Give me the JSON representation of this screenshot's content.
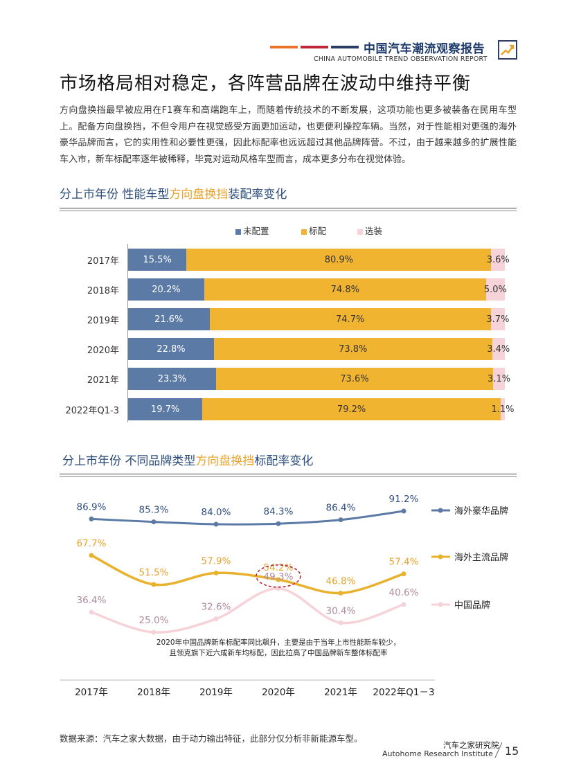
{
  "header": {
    "report_title": "中国汽车潮流观察报告",
    "report_subtitle": "CHINA AUTOMOBILE TREND OBSERVATION REPORT",
    "bar_colors": [
      "#e8732b",
      "#c0283a",
      "#2a3e66"
    ]
  },
  "main_title": "市场格局相对稳定，各阵营品牌在波动中维持平衡",
  "intro": "方向盘换挡最早被应用在F1赛车和高端跑车上，而随着传统技术的不断发展，这项功能也更多被装备在民用车型上。配备方向盘换挡，不但令用户在视觉感受方面更加运动，也更便利操控车辆。当然，对于性能相对更强的海外豪华品牌而言，它的实用性和必要性更强，因此标配率也远远超过其他品牌阵营。不过，由于越来越多的扩展性能车入市，新车标配率逐年被稀释，毕竟对运动风格车型而言，成本更多分布在视觉体验。",
  "section1": {
    "prefix": "分上市年份  性能车型",
    "highlight": "方向盘换挡",
    "suffix": "装配率变化"
  },
  "section2": {
    "prefix": "分上市年份  不同品牌类型",
    "highlight": "方向盘换挡",
    "suffix": "标配率变化"
  },
  "chart_data": [
    {
      "type": "bar",
      "orientation": "horizontal-stacked-100",
      "categories": [
        "2017年",
        "2018年",
        "2019年",
        "2020年",
        "2021年",
        "2022年Q1-3"
      ],
      "series": [
        {
          "name": "未配置",
          "color": "#5b7aa6",
          "values": [
            15.5,
            20.2,
            21.6,
            22.8,
            23.3,
            19.7
          ],
          "labels": [
            "15.5%",
            "20.2%",
            "21.6%",
            "22.8%",
            "23.3%",
            "19.7%"
          ]
        },
        {
          "name": "标配",
          "color": "#f0b431",
          "values": [
            80.9,
            74.8,
            74.7,
            73.8,
            73.6,
            79.2
          ],
          "labels": [
            "80.9%",
            "74.8%",
            "74.7%",
            "73.8%",
            "73.6%",
            "79.2%"
          ]
        },
        {
          "name": "选装",
          "color": "#f6d3d8",
          "values": [
            3.6,
            5.0,
            3.7,
            3.4,
            3.1,
            1.1
          ],
          "labels": [
            "3.6%",
            "5.0%",
            "3.7%",
            "3.4%",
            "3.1%",
            "1.1%"
          ]
        }
      ],
      "xlim": [
        0,
        100
      ]
    },
    {
      "type": "line",
      "x": [
        "2017年",
        "2018年",
        "2019年",
        "2020年",
        "2021年",
        "2022年Q1－3"
      ],
      "series": [
        {
          "name": "海外豪华品牌",
          "color": "#5b7aa6",
          "values": [
            86.9,
            85.3,
            84.0,
            84.3,
            86.4,
            91.2
          ],
          "labels": [
            "86.9%",
            "85.3%",
            "84.0%",
            "84.3%",
            "86.4%",
            "91.2%"
          ]
        },
        {
          "name": "海外主流品牌",
          "color": "#e9b22d",
          "values": [
            67.7,
            51.5,
            57.9,
            54.2,
            46.8,
            57.4
          ],
          "labels": [
            "67.7%",
            "51.5%",
            "57.9%",
            "54.2%",
            "46.8%",
            "57.4%"
          ]
        },
        {
          "name": "中国品牌",
          "color": "#f6d3d8",
          "values": [
            36.4,
            25.0,
            32.6,
            49.3,
            30.4,
            40.6
          ],
          "labels": [
            "36.4%",
            "25.0%",
            "32.6%",
            "49.3%",
            "30.4%",
            "40.6%"
          ]
        }
      ],
      "highlight": {
        "series": "中国品牌",
        "category": "2020年",
        "value": 49.3
      },
      "annotation": [
        "2020年中国品牌新车标配率同比飙升，主要是由于当年上市性能新车较少，",
        "且领克旗下近六成新车均标配，因此拉高了中国品牌新车整体标配率"
      ]
    }
  ],
  "footer": {
    "source": "数据来源：汽车之家大数据，由于动力输出特征，此部分仅分析非新能源车型。",
    "org_cn": "汽车之家研究院",
    "org_en": "Autohome Research Institute",
    "page": "15"
  }
}
